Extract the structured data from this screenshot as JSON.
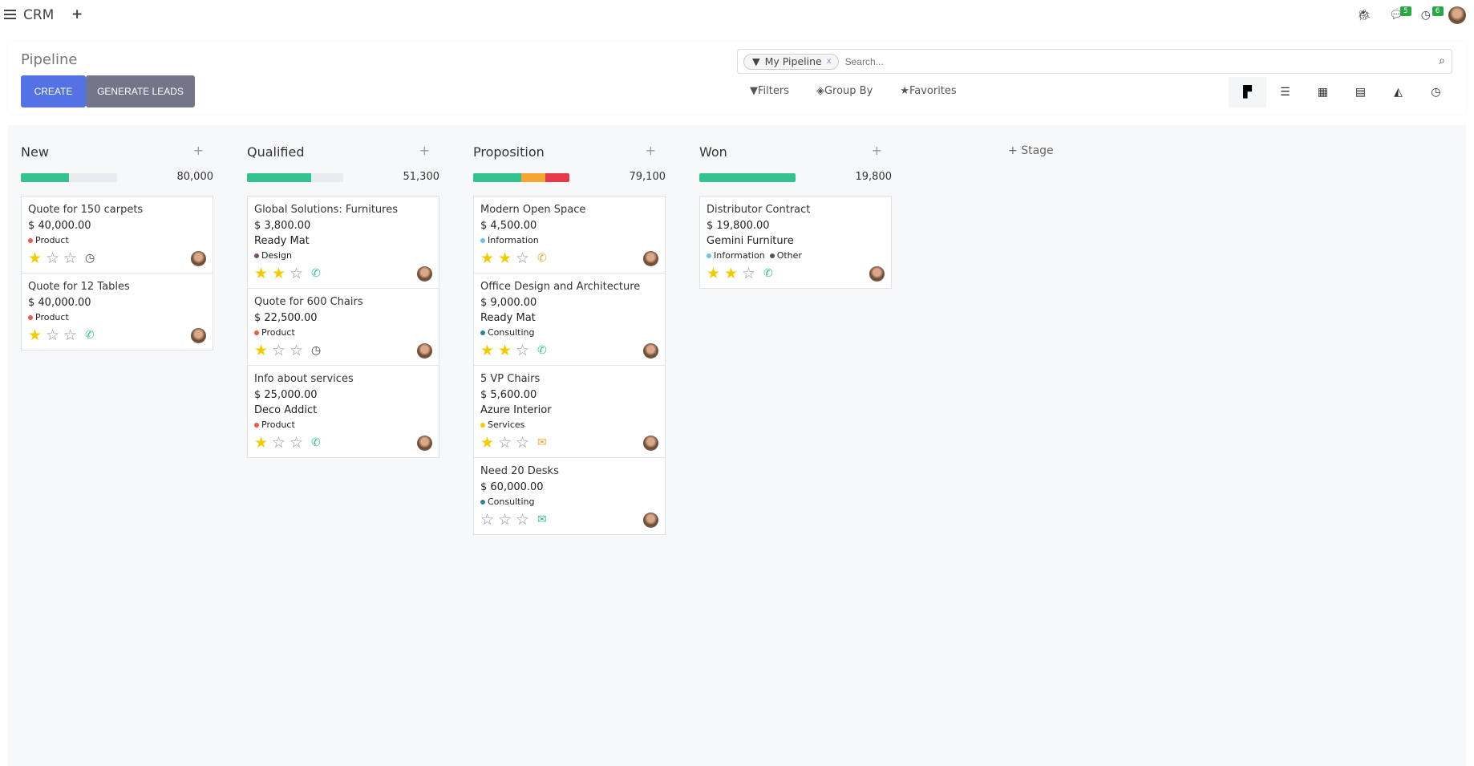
{
  "app": {
    "name": "CRM",
    "new_icon": "plus-icon",
    "messages_count": "5",
    "activities_count": "6"
  },
  "control": {
    "title": "Pipeline",
    "create": "CREATE",
    "generate": "GENERATE LEADS",
    "facet": "My Pipeline",
    "search_placeholder": "Search...",
    "filters": "Filters",
    "group_by": "Group By",
    "favorites": "Favorites",
    "views": [
      "kanban",
      "list",
      "calendar",
      "pivot",
      "graph",
      "activity"
    ],
    "active_view": "kanban"
  },
  "colors": {
    "accent": "#5472e3",
    "green": "#34c38f",
    "orange": "#f7a531",
    "red": "#e8394b",
    "star": "#f3cc00"
  },
  "add_stage": "Stage",
  "columns": [
    {
      "name": "New",
      "total": "80,000",
      "progress": [
        {
          "color": "#34c38f",
          "pct": 50
        }
      ],
      "cards": [
        {
          "name": "Quote for 150 carpets",
          "amount": "$ 40,000.00",
          "partner": "",
          "tags": [
            {
              "label": "Product",
              "color": "#ef5a4c"
            }
          ],
          "stars": 1,
          "activity": "clock",
          "activity_color": "#444"
        },
        {
          "name": "Quote for 12 Tables",
          "amount": "$ 40,000.00",
          "partner": "",
          "tags": [
            {
              "label": "Product",
              "color": "#ef5a4c"
            }
          ],
          "stars": 1,
          "activity": "phone",
          "activity_color": "#34c38f"
        }
      ]
    },
    {
      "name": "Qualified",
      "total": "51,300",
      "progress": [
        {
          "color": "#34c38f",
          "pct": 67
        }
      ],
      "cards": [
        {
          "name": "Global Solutions: Furnitures",
          "amount": "$ 3,800.00",
          "partner": "Ready Mat",
          "tags": [
            {
              "label": "Design",
              "color": "#7d4b6e"
            }
          ],
          "stars": 2,
          "activity": "phone",
          "activity_color": "#34c38f"
        },
        {
          "name": "Quote for 600 Chairs",
          "amount": "$ 22,500.00",
          "partner": "",
          "tags": [
            {
              "label": "Product",
              "color": "#ef5a4c"
            }
          ],
          "stars": 1,
          "activity": "clock",
          "activity_color": "#444"
        },
        {
          "name": "Info about services",
          "amount": "$ 25,000.00",
          "partner": "Deco Addict",
          "tags": [
            {
              "label": "Product",
              "color": "#ef5a4c"
            }
          ],
          "stars": 1,
          "activity": "phone",
          "activity_color": "#34c38f"
        }
      ]
    },
    {
      "name": "Proposition",
      "total": "79,100",
      "progress": [
        {
          "color": "#34c38f",
          "pct": 50
        },
        {
          "color": "#f7a531",
          "pct": 25
        },
        {
          "color": "#e8394b",
          "pct": 25
        }
      ],
      "cards": [
        {
          "name": "Modern Open Space",
          "amount": "$ 4,500.00",
          "partner": "",
          "tags": [
            {
              "label": "Information",
              "color": "#6cc1ed"
            }
          ],
          "stars": 2,
          "activity": "phone",
          "activity_color": "#f7a531"
        },
        {
          "name": "Office Design and Architecture",
          "amount": "$ 9,000.00",
          "partner": "Ready Mat",
          "tags": [
            {
              "label": "Consulting",
              "color": "#2c8397"
            }
          ],
          "stars": 2,
          "activity": "phone",
          "activity_color": "#34c38f"
        },
        {
          "name": "5 VP Chairs",
          "amount": "$ 5,600.00",
          "partner": "Azure Interior",
          "tags": [
            {
              "label": "Services",
              "color": "#f3cc00"
            }
          ],
          "stars": 1,
          "activity": "envelope",
          "activity_color": "#f7a531"
        },
        {
          "name": "Need 20 Desks",
          "amount": "$ 60,000.00",
          "partner": "",
          "tags": [
            {
              "label": "Consulting",
              "color": "#2c8397"
            }
          ],
          "stars": 0,
          "activity": "envelope",
          "activity_color": "#34c38f"
        }
      ]
    },
    {
      "name": "Won",
      "total": "19,800",
      "progress": [
        {
          "color": "#34c38f",
          "pct": 100
        }
      ],
      "cards": [
        {
          "name": "Distributor Contract",
          "amount": "$ 19,800.00",
          "partner": "Gemini Furniture",
          "tags": [
            {
              "label": "Information",
              "color": "#6cc1ed"
            },
            {
              "label": "Other",
              "color": "#4c5468"
            }
          ],
          "stars": 2,
          "activity": "phone",
          "activity_color": "#34c38f"
        }
      ]
    }
  ]
}
